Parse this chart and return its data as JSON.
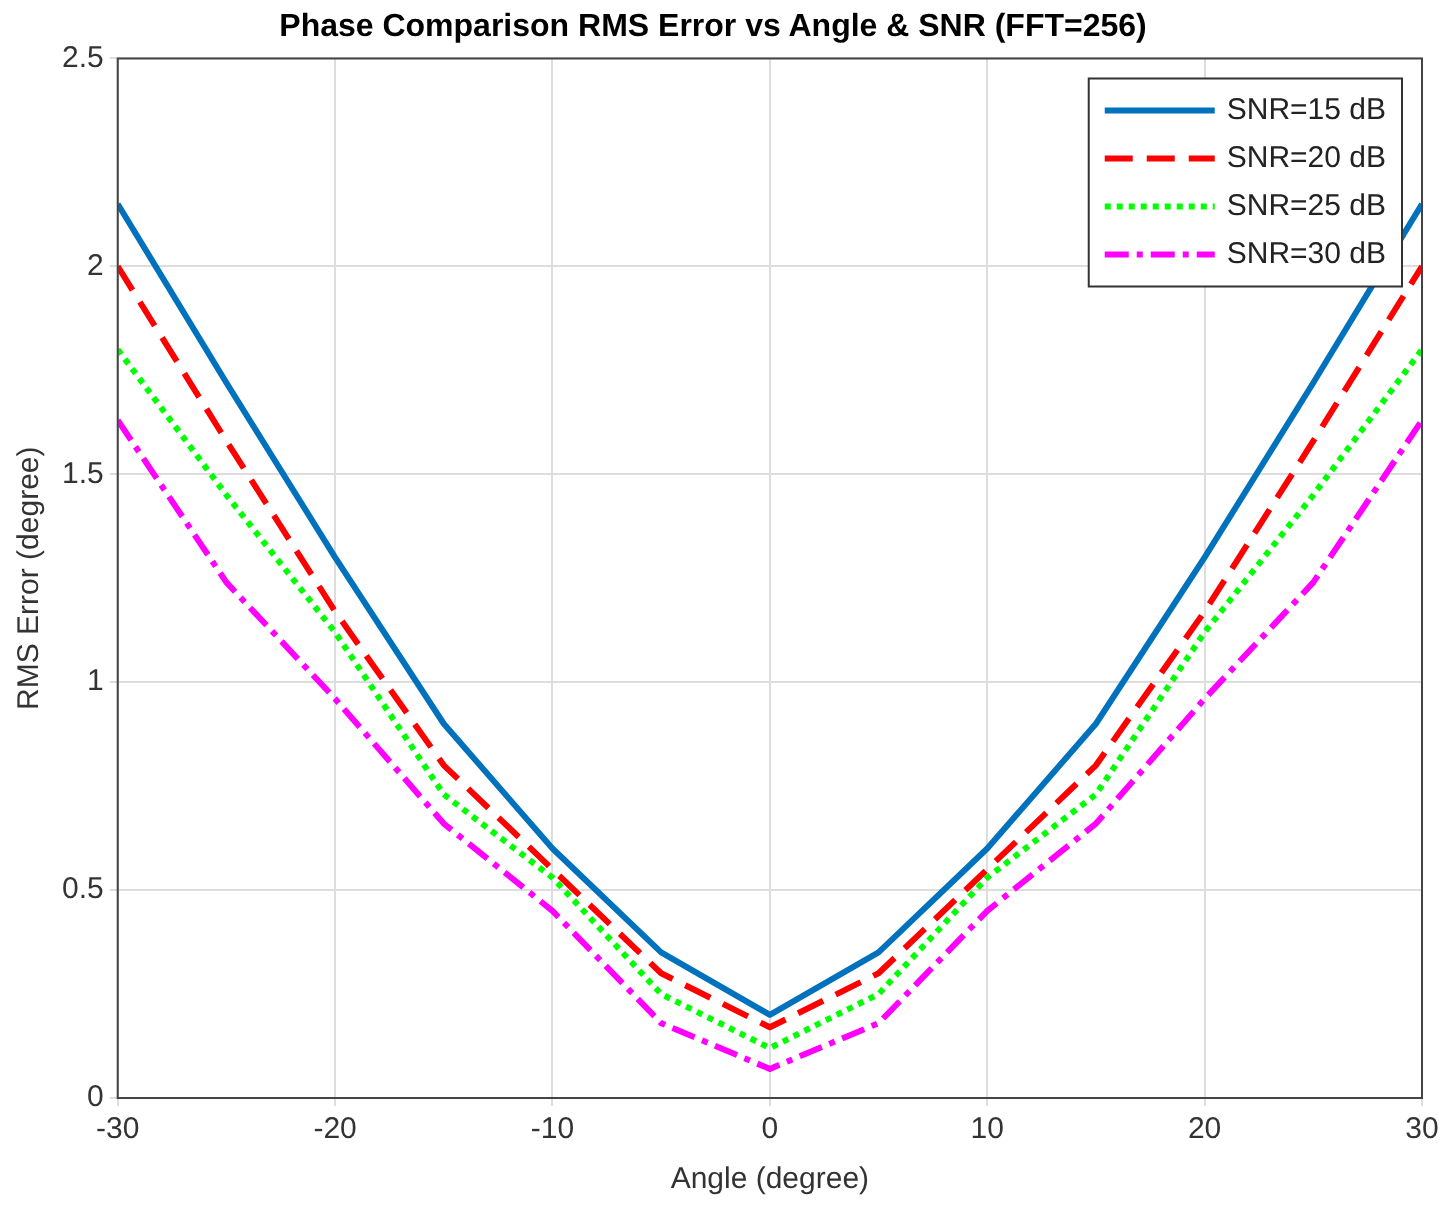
{
  "chart_data": {
    "type": "line",
    "title": "Phase Comparison RMS Error vs Angle & SNR (FFT=256)",
    "xlabel": "Angle (degree)",
    "ylabel": "RMS Error (degree)",
    "x": [
      -30,
      -25,
      -20,
      -15,
      -10,
      -5,
      0,
      5,
      10,
      15,
      20,
      25,
      30
    ],
    "series": [
      {
        "name": "SNR=15 dB",
        "color": "#0072bd",
        "line_style": "solid",
        "values": [
          2.15,
          1.72,
          1.3,
          0.9,
          0.6,
          0.35,
          0.2,
          0.35,
          0.6,
          0.9,
          1.3,
          1.72,
          2.15
        ]
      },
      {
        "name": "SNR=20 dB",
        "color": "#ff0000",
        "line_style": "dashed",
        "values": [
          2.0,
          1.58,
          1.17,
          0.8,
          0.55,
          0.3,
          0.17,
          0.3,
          0.55,
          0.8,
          1.17,
          1.58,
          2.0
        ]
      },
      {
        "name": "SNR=25 dB",
        "color": "#00ff00",
        "line_style": "dotted",
        "values": [
          1.8,
          1.45,
          1.12,
          0.73,
          0.53,
          0.25,
          0.12,
          0.25,
          0.53,
          0.73,
          1.12,
          1.45,
          1.8
        ]
      },
      {
        "name": "SNR=30 dB",
        "color": "#ff00ff",
        "line_style": "dashdot",
        "values": [
          1.63,
          1.24,
          0.96,
          0.66,
          0.45,
          0.18,
          0.07,
          0.18,
          0.45,
          0.66,
          0.96,
          1.24,
          1.63
        ]
      }
    ],
    "xlim": [
      -30,
      30
    ],
    "xticks": [
      -30,
      -20,
      -10,
      0,
      10,
      20,
      30
    ],
    "ylim": [
      0,
      2.5
    ],
    "yticks": [
      0,
      0.5,
      1,
      1.5,
      2,
      2.5
    ],
    "grid": true,
    "legend": "top right",
    "marker": "none"
  }
}
